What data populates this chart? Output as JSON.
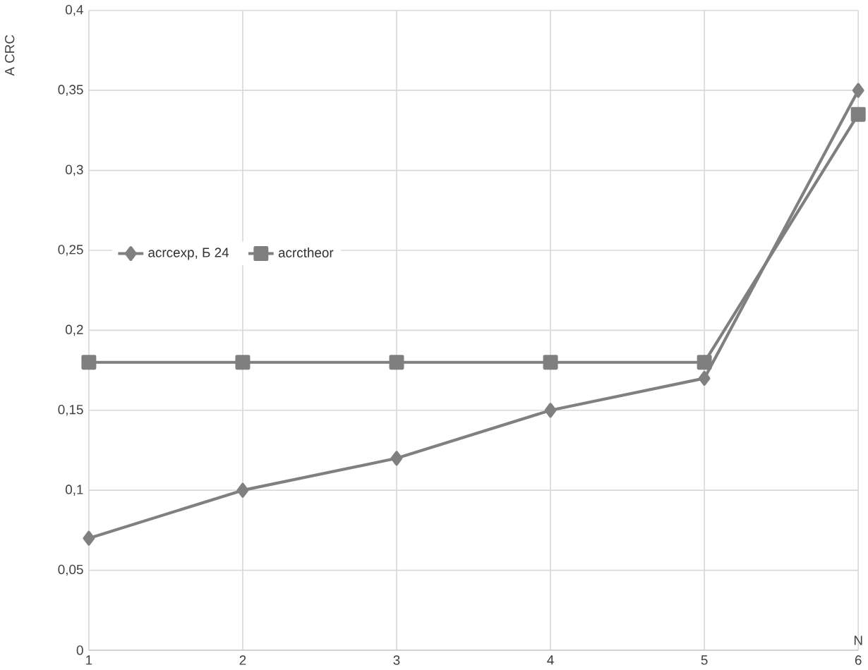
{
  "chart_data": {
    "type": "line",
    "xlabel": "N",
    "ylabel": "A CRC",
    "x": [
      1,
      2,
      3,
      4,
      5,
      6
    ],
    "xlim": [
      1,
      6
    ],
    "xticks": [
      1,
      2,
      3,
      4,
      5,
      6
    ],
    "ylim": [
      0,
      0.4
    ],
    "yticks": [
      0,
      {
        "value": 0.05,
        "label": "0,05"
      },
      {
        "value": 0.1,
        "label": "0,1"
      },
      {
        "value": 0.15,
        "label": "0,15"
      },
      {
        "value": 0.2,
        "label": "0,2"
      },
      {
        "value": 0.25,
        "label": "0,25"
      },
      {
        "value": 0.3,
        "label": "0,3"
      },
      {
        "value": 0.35,
        "label": "0,35"
      },
      {
        "value": 0.4,
        "label": "0,4"
      }
    ],
    "grid": true,
    "legend": "left",
    "line_style": "solid",
    "series": [
      {
        "name": "acrcexp, Б 24",
        "color": "#808080",
        "marker": "diamond",
        "values": [
          0.07,
          0.1,
          0.12,
          0.15,
          0.17,
          0.35
        ]
      },
      {
        "name": "acrctheor",
        "color": "#7f7f7f",
        "marker": "square",
        "values": [
          0.18,
          0.18,
          0.18,
          0.18,
          0.18,
          0.335
        ]
      }
    ]
  }
}
